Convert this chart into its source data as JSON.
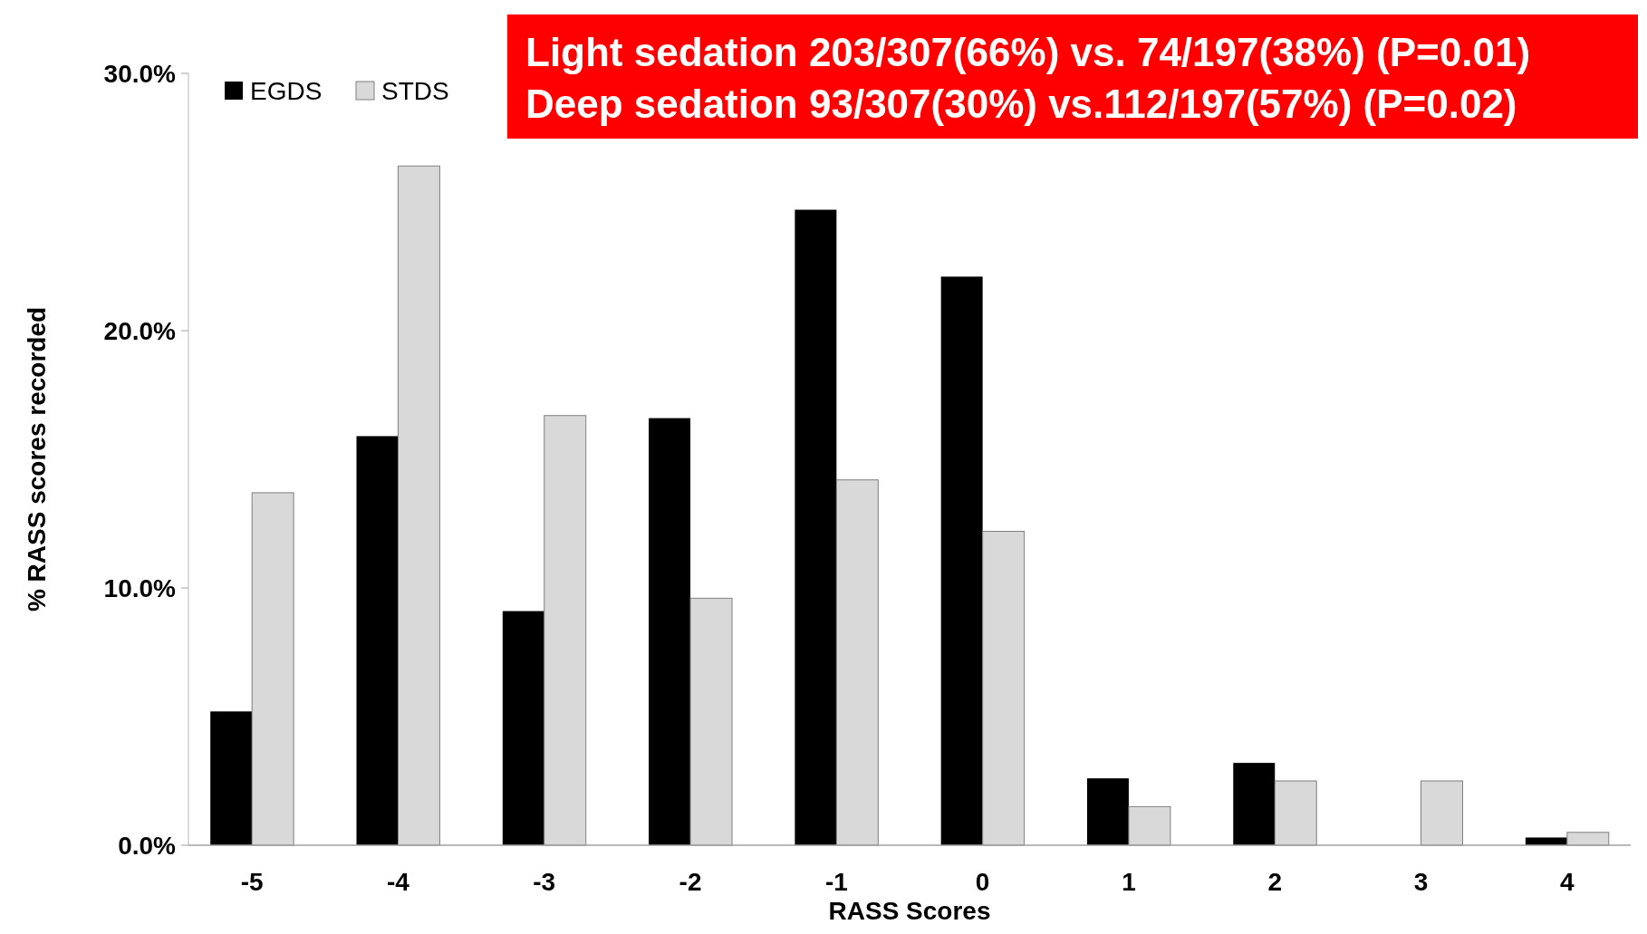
{
  "chart_data": {
    "type": "bar",
    "xlabel": "RASS Scores",
    "ylabel": "% RASS scores recorded",
    "categories": [
      "-5",
      "-4",
      "-3",
      "-2",
      "-1",
      "0",
      "1",
      "2",
      "3",
      "4"
    ],
    "series": [
      {
        "name": "EGDS",
        "color": "#000000",
        "values": [
          5.2,
          15.9,
          9.1,
          16.6,
          24.7,
          22.1,
          2.6,
          3.2,
          0,
          0.3
        ]
      },
      {
        "name": "STDS",
        "color": "#d9d9d9",
        "values": [
          13.7,
          26.4,
          16.7,
          9.6,
          14.2,
          12.2,
          1.5,
          2.5,
          2.5,
          0.5
        ]
      }
    ],
    "ylim": [
      0,
      30
    ],
    "yticks": [
      {
        "value": 0,
        "label": "0.0%"
      },
      {
        "value": 10,
        "label": "10.0%"
      },
      {
        "value": 20,
        "label": "20.0%"
      },
      {
        "value": 30,
        "label": "30.0%"
      }
    ],
    "legend": "top left",
    "annotations": [
      "Light sedation 203/307(66%) vs. 74/197(38%) (P=0.01)",
      "Deep sedation 93/307(30%) vs.112/197(57%) (P=0.02)"
    ]
  }
}
